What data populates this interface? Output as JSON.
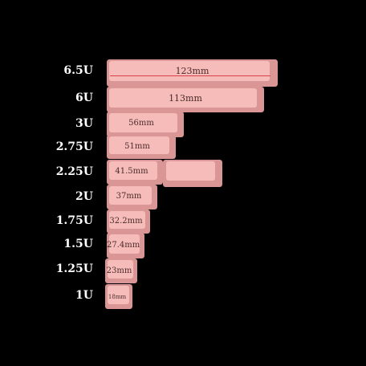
{
  "colors": {
    "background": "#000000",
    "key_face": "#f4b8b6",
    "key_side": "#e6a09e",
    "key_shadow": "#c98684",
    "label_text": "#ffffff",
    "mm_text": "#4a2a2a",
    "accent_line": "#d8404a"
  },
  "rows": [
    {
      "size": "6.5U",
      "length": "123mm"
    },
    {
      "size": "6U",
      "length": "113mm"
    },
    {
      "size": "3U",
      "length": "56mm"
    },
    {
      "size": "2.75U",
      "length": "51mm"
    },
    {
      "size": "2.25U",
      "length": "41.5mm"
    },
    {
      "size": "2U",
      "length": "37mm"
    },
    {
      "size": "1.75U",
      "length": "32.2mm"
    },
    {
      "size": "1.5U",
      "length": "27.4mm"
    },
    {
      "size": "1.25U",
      "length": "23mm"
    },
    {
      "size": "1U",
      "length": "18mm"
    }
  ]
}
